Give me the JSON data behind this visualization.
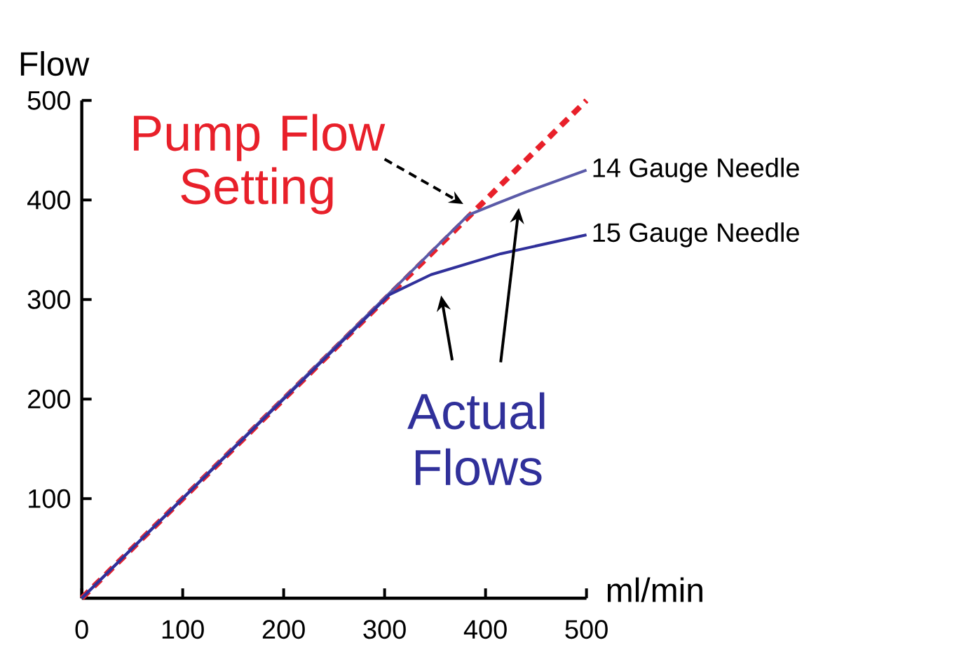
{
  "chart_data": {
    "type": "line",
    "xlabel": "ml/min",
    "ylabel": "Flow",
    "xlim": [
      0,
      500
    ],
    "ylim": [
      0,
      500
    ],
    "xticks": [
      0,
      100,
      200,
      300,
      400,
      500
    ],
    "yticks": [
      100,
      200,
      300,
      400,
      500
    ],
    "legend": false,
    "grid": false,
    "annotations": [
      "Actual Flows"
    ],
    "series": [
      {
        "name": "Pump Flow Setting",
        "color": "#e8202a",
        "line_style": "dashed",
        "x": [
          0,
          383,
          500
        ],
        "values": [
          0,
          383,
          500
        ]
      },
      {
        "name": "14 Gauge Needle",
        "color": "#5a5aa8",
        "line_style": "solid",
        "x": [
          0,
          383,
          410,
          440,
          500
        ],
        "values": [
          0,
          385,
          396,
          408,
          430
        ]
      },
      {
        "name": "15 Gauge Needle",
        "color": "#30309a",
        "line_style": "solid",
        "x": [
          0,
          305,
          346,
          415,
          500
        ],
        "values": [
          0,
          305,
          325,
          346,
          365
        ]
      }
    ]
  }
}
